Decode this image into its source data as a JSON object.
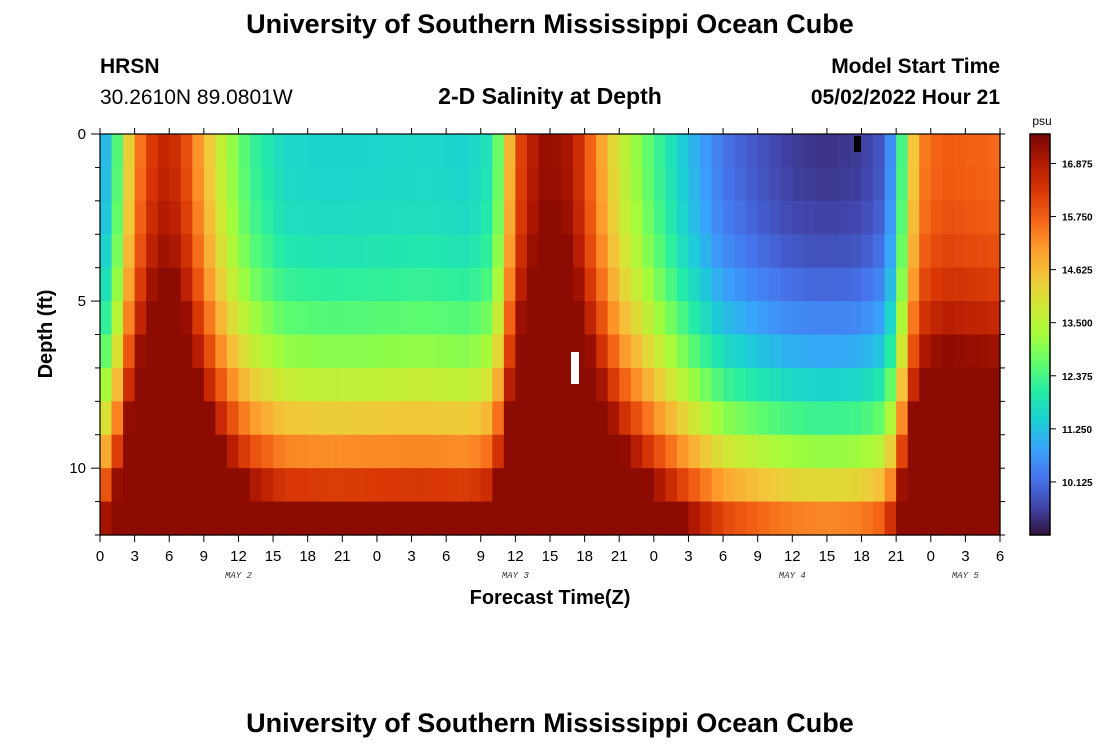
{
  "header": {
    "title": "University of Southern Mississippi Ocean Cube",
    "station": "HRSN",
    "coords": "30.2610N  89.0801W",
    "plot_title": "2-D Salinity at Depth",
    "start_label": "Model Start Time",
    "start_value": "05/02/2022 Hour 21"
  },
  "footer": {
    "title": "University of Southern Mississippi Ocean Cube"
  },
  "colors": {
    "colormap": [
      "#30123b",
      "#4145ab",
      "#4675ed",
      "#39a2fc",
      "#1bcfd4",
      "#24eca6",
      "#61fc6c",
      "#a4fc3b",
      "#d1e834",
      "#f3c63a",
      "#fe9b2d",
      "#f36315",
      "#d93806",
      "#b11901",
      "#7a0402"
    ]
  },
  "chart_data": {
    "type": "heatmap",
    "title": "2-D Salinity at Depth",
    "xlabel": "Forecast Time(Z)",
    "ylabel": "Depth (ft)",
    "x_start_hour": 0,
    "x_end_hour": 78,
    "x_hour_step": 3,
    "xtick_labels": [
      "0",
      "3",
      "6",
      "9",
      "12",
      "15",
      "18",
      "21",
      "0",
      "3",
      "6",
      "9",
      "12",
      "15",
      "18",
      "21",
      "0",
      "3",
      "6",
      "9",
      "12",
      "15",
      "18",
      "21",
      "0",
      "3",
      "6"
    ],
    "day_labels": [
      {
        "label": "MAY 2",
        "hour": 12
      },
      {
        "label": "MAY 3",
        "hour": 36
      },
      {
        "label": "MAY 4",
        "hour": 60
      },
      {
        "label": "MAY 5",
        "hour": 75
      }
    ],
    "ylim": [
      0,
      12
    ],
    "yticks": [
      0,
      5,
      10
    ],
    "colorbar": {
      "unit": "psu",
      "min": 9.0,
      "max": 17.5,
      "ticks": [
        16.875,
        15.75,
        14.625,
        13.5,
        12.375,
        11.25,
        10.125
      ],
      "tick_labels": [
        "16.875",
        "15.750",
        "14.625",
        "13.500",
        "12.375",
        "11.250",
        "10.125"
      ]
    },
    "grid": false
  }
}
